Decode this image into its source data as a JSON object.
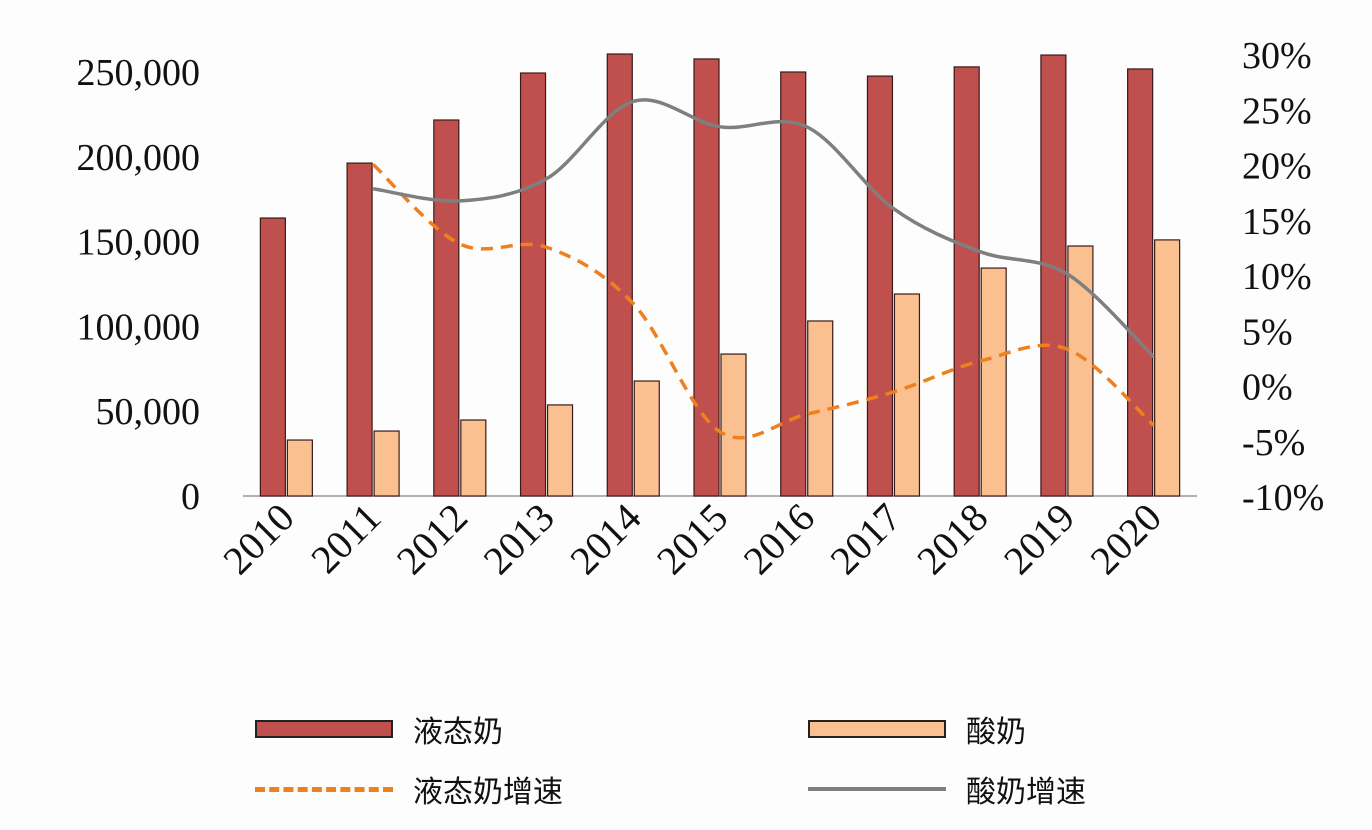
{
  "chart_data": {
    "type": "bar",
    "categories": [
      "2010",
      "2011",
      "2012",
      "2013",
      "2014",
      "2015",
      "2016",
      "2017",
      "2018",
      "2019",
      "2020"
    ],
    "series": [
      {
        "name": "液态奶",
        "kind": "bar",
        "axis": "left",
        "color": "#c0504d",
        "values": [
          163900,
          196300,
          221700,
          249400,
          260600,
          257700,
          250000,
          247600,
          253000,
          260000,
          251800
        ]
      },
      {
        "name": "酸奶",
        "kind": "bar",
        "axis": "left",
        "color": "#fac090",
        "values": [
          33000,
          38300,
          44800,
          53700,
          67800,
          83700,
          103200,
          119100,
          134400,
          147400,
          151000
        ]
      },
      {
        "name": "液态奶增速",
        "kind": "line",
        "style": "dashed",
        "axis": "right",
        "color": "#f07f1e",
        "values": [
          null,
          20.1,
          12.9,
          12.6,
          7.5,
          -4.1,
          -2.5,
          -0.5,
          2.3,
          3.4,
          -3.5
        ]
      },
      {
        "name": "酸奶增速",
        "kind": "line",
        "style": "solid",
        "axis": "right",
        "color": "#7f7f7f",
        "values": [
          null,
          17.9,
          16.8,
          18.8,
          25.8,
          23.5,
          23.5,
          16.1,
          12.2,
          10.2,
          2.7
        ]
      }
    ],
    "y_left": {
      "range": [
        0,
        250000
      ],
      "ticks": [
        "0",
        "50,000",
        "100,000",
        "150,000",
        "200,000",
        "250,000"
      ]
    },
    "y_right": {
      "range": [
        -10,
        30
      ],
      "ticks": [
        "-10%",
        "-5%",
        "0%",
        "5%",
        "10%",
        "15%",
        "20%",
        "25%",
        "30%"
      ]
    },
    "grid": false,
    "legend": "bottom"
  }
}
